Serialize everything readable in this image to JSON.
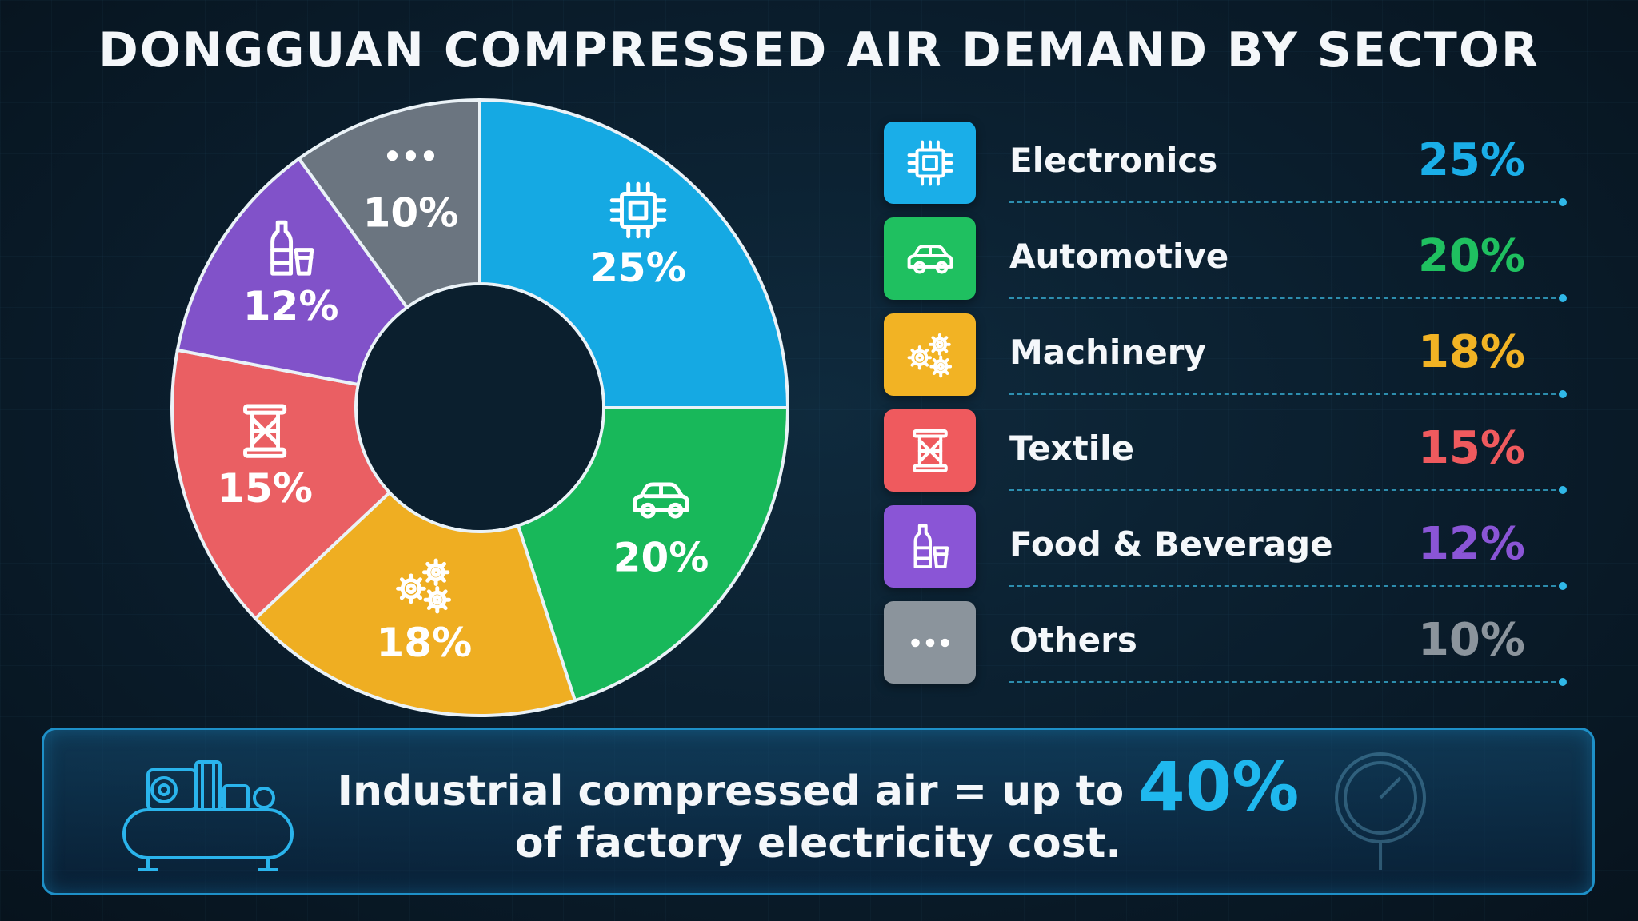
{
  "title": "DONGGUAN COMPRESSED AIR DEMAND BY SECTOR",
  "chart_data": {
    "type": "pie",
    "style": "donut",
    "title": "DONGGUAN COMPRESSED AIR DEMAND BY SECTOR",
    "categories": [
      "Electronics",
      "Automotive",
      "Machinery",
      "Textile",
      "Food & Beverage",
      "Others"
    ],
    "values": [
      25,
      20,
      18,
      15,
      12,
      10
    ],
    "labels": [
      "25%",
      "20%",
      "18%",
      "15%",
      "12%",
      "10%"
    ],
    "colors": [
      "#15a9e3",
      "#18b85a",
      "#efae22",
      "#ea5f63",
      "#8152c9",
      "#6b7580"
    ],
    "icons": [
      "chip-icon",
      "car-icon",
      "gears-icon",
      "spool-icon",
      "bottle-cup-icon",
      "ellipsis-icon"
    ],
    "legend_placement": "right"
  },
  "legend": [
    {
      "label": "Electronics",
      "value": "25%",
      "color": "#1aaee8",
      "icon": "chip-icon"
    },
    {
      "label": "Automotive",
      "value": "20%",
      "color": "#1fc060",
      "icon": "car-icon"
    },
    {
      "label": "Machinery",
      "value": "18%",
      "color": "#f2b324",
      "icon": "gears-icon"
    },
    {
      "label": "Textile",
      "value": "15%",
      "color": "#ef5a5e",
      "icon": "spool-icon"
    },
    {
      "label": "Food & Beverage",
      "value": "12%",
      "color": "#8a55d6",
      "icon": "bottle-cup-icon"
    },
    {
      "label": "Others",
      "value": "10%",
      "color": "#8b949c",
      "icon": "ellipsis-icon"
    }
  ],
  "banner": {
    "line1_prefix": "Industrial compressed air =  up to ",
    "line1_highlight": "40%",
    "line2": "of factory electricity cost.",
    "icon": "air-compressor-icon"
  }
}
